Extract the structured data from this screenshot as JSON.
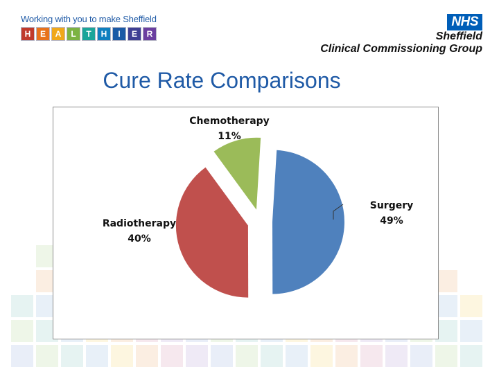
{
  "header": {
    "tagline": "Working with you to make Sheffield",
    "logo_letters": [
      "H",
      "E",
      "A",
      "L",
      "T",
      "H",
      "I",
      "E",
      "R"
    ],
    "logo_colors": [
      "#c0392b",
      "#e8731c",
      "#f0a81a",
      "#7cb342",
      "#1aa59a",
      "#0e7fbf",
      "#1a5aa6",
      "#3e3f93",
      "#6b3fa0"
    ],
    "nhs_badge": "NHS",
    "org_line1": "Sheffield",
    "org_line2": "Clinical Commissioning Group"
  },
  "slide": {
    "title": "Cure Rate Comparisons"
  },
  "chart_data": {
    "type": "pie",
    "title": "",
    "exploded": true,
    "series": [
      {
        "name": "Surgery",
        "value": 49,
        "label": "49%",
        "color": "#4f81bd"
      },
      {
        "name": "Radiotherapy",
        "value": 40,
        "label": "40%",
        "color": "#c0504d"
      },
      {
        "name": "Chemotherapy",
        "value": 11,
        "label": "11%",
        "color": "#9bbb59"
      }
    ]
  }
}
